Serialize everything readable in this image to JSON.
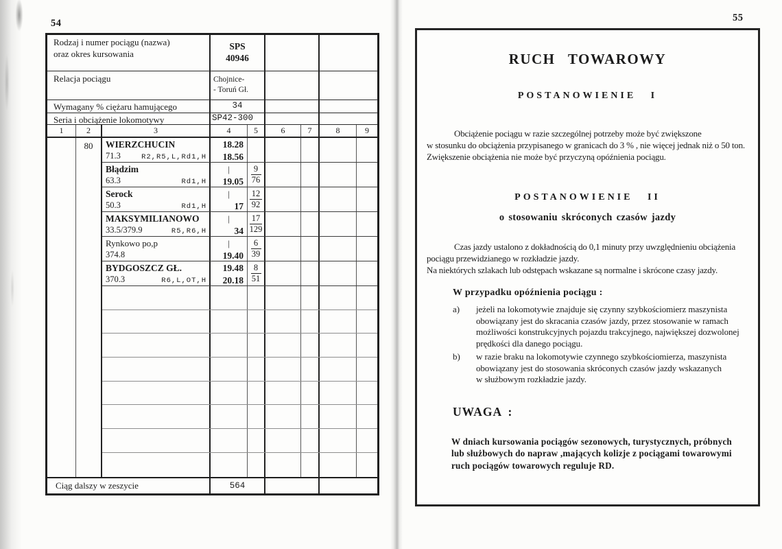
{
  "page_left": {
    "page_number": "54",
    "header": {
      "rows": [
        {
          "label": "Rodzaj i numer pociągu (nazwa)\noraz okres kursowania",
          "value": "SPS\n40946"
        },
        {
          "label": "Relacja pociągu",
          "value": "Chojnice-\n- Toruń Gł."
        },
        {
          "label": "Wymagany % ciężaru hamującego",
          "value": "34"
        },
        {
          "label": "Seria i obciążenie lokomotywy",
          "value": "SP42-300"
        }
      ]
    },
    "column_numbers": [
      "1",
      "2",
      "3",
      "4",
      "5",
      "6",
      "7",
      "8",
      "9"
    ],
    "speed_limit": "80",
    "stations": [
      {
        "name": "WIERZCHUCIN",
        "km": "71.3",
        "codes": "R2,R5,L,Rd1,H",
        "time_top": "18.28",
        "time_bottom": "18.56",
        "frac_top": "",
        "frac_bottom": ""
      },
      {
        "name": "Błądzim",
        "km": "63.3",
        "codes": "Rd1,H",
        "time_top": "|",
        "time_bottom": "19.05",
        "frac_top": "9",
        "frac_bottom": "76"
      },
      {
        "name": "Serock",
        "km": "50.3",
        "codes": "Rd1,H",
        "time_top": "|",
        "time_bottom": "17",
        "frac_top": "12",
        "frac_bottom": "92"
      },
      {
        "name": "MAKSYMILIANOWO",
        "km": "33.5/379.9",
        "codes": "R5,R6,H",
        "time_top": "|",
        "time_bottom": "34",
        "frac_top": "17",
        "frac_bottom": "129"
      },
      {
        "name": "Rynkowo po,p",
        "km": "374.8",
        "codes": "",
        "time_top": "|",
        "time_bottom": "19.40",
        "frac_top": "6",
        "frac_bottom": "39"
      },
      {
        "name": "BYDGOSZCZ GŁ.",
        "km": "370.3",
        "codes": "R6,L,OT,H",
        "time_top": "19.48",
        "time_bottom": "20.18",
        "frac_top": "8",
        "frac_bottom": "51"
      }
    ],
    "footer": {
      "label": "Ciąg dalszy w zeszycie",
      "value": "564"
    }
  },
  "page_right": {
    "page_number": "55",
    "title": "RUCH TOWAROWY",
    "section1": {
      "heading": "POSTANOWIENIE I",
      "body": "Obciążenie pociągu w razie szczególnej potrzeby może być zwiększone\nw stosunku do obciążenia przypisanego w granicach do 3 % , nie więcej jednak niż o 50 ton.\nZwiększenie obciążenia nie może być przyczyną opóźnienia pociągu."
    },
    "section2": {
      "heading": "POSTANOWIENIE II",
      "subheading": "o stosowaniu skróconych czasów jazdy",
      "body": "Czas jazdy ustalono z dokładnością do 0,1 minuty przy uwzględnieniu obciążenia\npociągu przewidzianego w rozkładzie jazdy.\nNa niektórych szlakach lub odstępach wskazane są normalne i skrócone czasy jazdy.",
      "case_intro": "W przypadku opóźnienia pociągu :",
      "items": [
        {
          "marker": "a)",
          "text": "jeżeli na lokomotywie znajduje się czynny szybkościomierz maszynista\nobowiązany jest do skracania czasów jazdy, przez stosowanie w ramach\nmożliwości konstrukcyjnych pojazdu trakcyjnego, największej dozwolonej\nprędkości dla danego pociągu."
        },
        {
          "marker": "b)",
          "text": "w razie braku na lokomotywie czynnego szybkościomierza, maszynista\nobowiązany jest do stosowania skróconych czasów jazdy wskazanych\nw służbowym rozkładzie jazdy."
        }
      ]
    },
    "note": {
      "heading": "UWAGA :",
      "body": "W dniach kursowania pociągów sezonowych, turystycznych, próbnych\nlub służbowych do napraw ,mających kolizje z pociągami towarowymi\nruch pociągów towarowych reguluje RD."
    }
  }
}
